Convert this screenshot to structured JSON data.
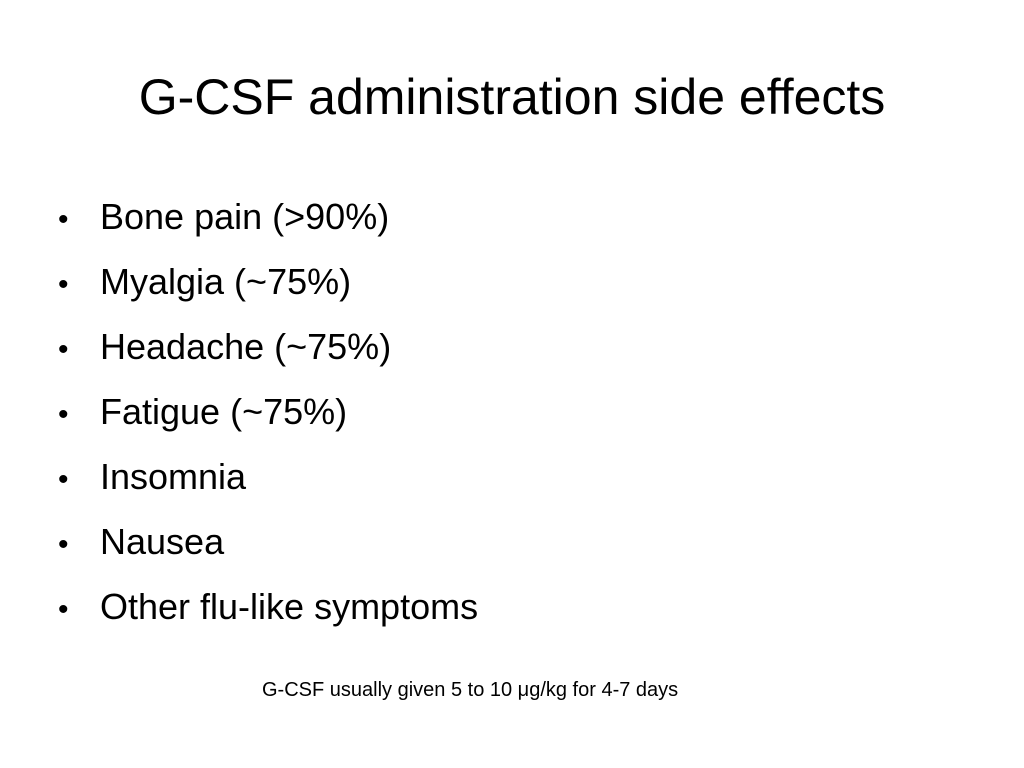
{
  "slide": {
    "title": "G-CSF administration side effects",
    "bullet_glyph": "•",
    "bullets": [
      "Bone pain (>90%)",
      "Myalgia (~75%)",
      "Headache (~75%)",
      "Fatigue (~75%)",
      "Insomnia",
      "Nausea",
      "Other flu-like symptoms"
    ],
    "footnote": "G-CSF usually given 5 to 10 μg/kg for 4-7 days"
  }
}
